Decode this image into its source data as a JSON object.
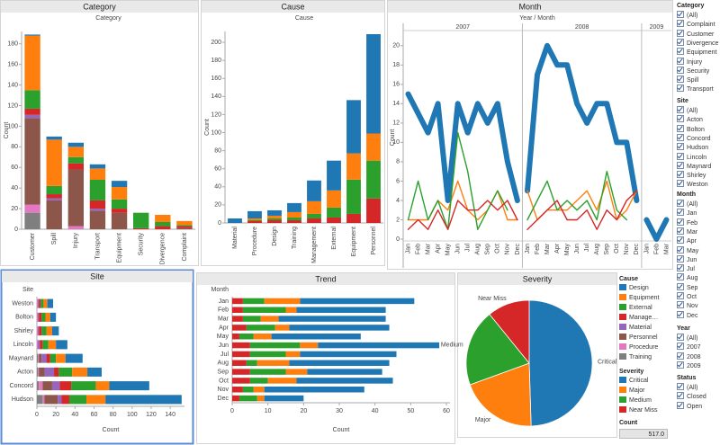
{
  "chart_data": [
    {
      "type": "bar",
      "title": "Category",
      "subtitle": "Category",
      "y_label": "Count",
      "categories": [
        "Customer",
        "Spill",
        "Injury",
        "Transport",
        "Equipment",
        "Security",
        "Divergence",
        "Complaint"
      ],
      "series": [
        {
          "name": "Design",
          "color": "#1f77b4",
          "values": [
            1,
            3,
            4,
            4,
            6,
            0,
            0,
            0
          ]
        },
        {
          "name": "Equipment",
          "color": "#ff7f0e",
          "values": [
            53,
            45,
            10,
            11,
            12,
            0,
            7,
            4
          ]
        },
        {
          "name": "External",
          "color": "#2ca02c",
          "values": [
            18,
            8,
            6,
            20,
            9,
            15,
            4,
            1
          ]
        },
        {
          "name": "Management",
          "color": "#d62728",
          "values": [
            6,
            4,
            6,
            8,
            4,
            1,
            3,
            2
          ]
        },
        {
          "name": "Material",
          "color": "#9467bd",
          "values": [
            3,
            2,
            0,
            2,
            0,
            0,
            0,
            0
          ]
        },
        {
          "name": "Personnel",
          "color": "#8c564b",
          "values": [
            84,
            28,
            55,
            18,
            16,
            0,
            0,
            1
          ]
        },
        {
          "name": "Procedure",
          "color": "#e377c2",
          "values": [
            8,
            0,
            3,
            0,
            0,
            0,
            0,
            0
          ]
        },
        {
          "name": "Training",
          "color": "#7f7f7f",
          "values": [
            16,
            0,
            0,
            0,
            0,
            0,
            0,
            0
          ]
        }
      ],
      "ylim": [
        0,
        192
      ],
      "yticks": [
        0,
        20,
        40,
        60,
        80,
        100,
        120,
        140,
        160,
        180
      ]
    },
    {
      "type": "bar",
      "title": "Cause",
      "subtitle": "Cause",
      "y_label": "Count",
      "categories": [
        "Material",
        "Procedure",
        "Design",
        "Training",
        "Management",
        "External",
        "Equipment",
        "Personnel"
      ],
      "series": [
        {
          "name": "Critical",
          "color": "#1f77b4",
          "values": [
            5,
            8,
            6,
            10,
            23,
            33,
            59,
            110
          ]
        },
        {
          "name": "Major",
          "color": "#ff7f0e",
          "values": [
            0,
            2,
            3,
            6,
            14,
            19,
            29,
            30
          ]
        },
        {
          "name": "Medium",
          "color": "#2ca02c",
          "values": [
            0,
            1,
            2,
            3,
            5,
            11,
            38,
            42
          ]
        },
        {
          "name": "Near Miss",
          "color": "#d62728",
          "values": [
            0,
            2,
            3,
            3,
            5,
            6,
            10,
            27
          ]
        }
      ],
      "ylim": [
        0,
        212
      ],
      "yticks": [
        0,
        20,
        40,
        60,
        80,
        100,
        120,
        140,
        160,
        180,
        200
      ]
    },
    {
      "type": "line",
      "title": "Month",
      "subtitle": "Year  /  Month",
      "y_label": "Count",
      "groups": [
        {
          "name": "2007",
          "categories": [
            "Jan",
            "Feb",
            "Mar",
            "Apr",
            "May",
            "Jun",
            "Jul",
            "Aug",
            "Sep",
            "Oct",
            "Nov",
            "Dec"
          ]
        },
        {
          "name": "2008",
          "categories": [
            "Jan",
            "Feb",
            "Mar",
            "Apr",
            "May",
            "Jun",
            "Jul",
            "Aug",
            "Sep",
            "Oct",
            "Nov",
            "Dec"
          ]
        },
        {
          "name": "2009",
          "categories": [
            "Jan",
            "Feb",
            "Mar"
          ]
        }
      ],
      "series": [
        {
          "color": "#1f77b4",
          "values": [
            [
              15,
              13,
              11,
              14,
              4,
              14,
              11,
              14,
              12,
              14,
              8,
              4
            ],
            [
              5,
              17,
              20,
              18,
              18,
              14,
              12,
              14,
              14,
              10,
              10,
              4
            ],
            [
              2,
              0,
              2
            ]
          ]
        },
        {
          "color": "#ff7f0e",
          "values": [
            [
              2,
              2,
              2,
              4,
              3,
              6,
              3,
              2,
              3,
              5,
              2,
              2
            ],
            [
              5,
              2,
              3,
              3,
              3,
              4,
              5,
              3,
              6,
              2,
              3,
              5
            ],
            [
              null,
              null,
              null
            ]
          ]
        },
        {
          "color": "#2ca02c",
          "values": [
            [
              2,
              6,
              2,
              4,
              1,
              11,
              7,
              1,
              3,
              5,
              3,
              null
            ],
            [
              2,
              4,
              6,
              3,
              4,
              3,
              4,
              2,
              7,
              3,
              2,
              null
            ],
            [
              null,
              null,
              null
            ]
          ]
        },
        {
          "color": "#d62728",
          "values": [
            [
              1,
              2,
              1,
              3,
              1,
              4,
              3,
              3,
              4,
              3,
              4,
              2
            ],
            [
              1,
              2,
              3,
              4,
              2,
              2,
              3,
              1,
              3,
              2,
              4,
              5
            ],
            [
              null,
              null,
              null
            ]
          ]
        }
      ],
      "ylim": [
        0,
        21
      ],
      "yticks": [
        0,
        2,
        4,
        6,
        8,
        10,
        12,
        14,
        16,
        18,
        20
      ]
    },
    {
      "type": "barh",
      "title": "Site",
      "y_label": "Site",
      "x_label": "Count",
      "categories": [
        "Weston",
        "Bolton",
        "Shirley",
        "Lincoln",
        "Maynard",
        "Acton",
        "Concord",
        "Hudson"
      ],
      "series": [
        {
          "color": "#1f77b4",
          "values": [
            6,
            6,
            7,
            12,
            18,
            15,
            42,
            80
          ]
        },
        {
          "color": "#ff7f0e",
          "values": [
            4,
            5,
            6,
            8,
            10,
            16,
            14,
            20
          ]
        },
        {
          "color": "#2ca02c",
          "values": [
            3,
            4,
            5,
            6,
            6,
            14,
            26,
            18
          ]
        },
        {
          "color": "#d62728",
          "values": [
            2,
            3,
            3,
            3,
            4,
            5,
            12,
            8
          ]
        },
        {
          "color": "#9467bd",
          "values": [
            1,
            1,
            1,
            2,
            5,
            10,
            8,
            4
          ]
        },
        {
          "color": "#8c564b",
          "values": [
            0,
            0,
            0,
            0,
            3,
            6,
            10,
            14
          ]
        },
        {
          "color": "#e377c2",
          "values": [
            1,
            1,
            1,
            1,
            1,
            1,
            4,
            2
          ]
        },
        {
          "color": "#7f7f7f",
          "values": [
            0,
            0,
            0,
            0,
            1,
            1,
            2,
            6
          ]
        }
      ],
      "xlim": [
        0,
        155
      ],
      "xticks": [
        0,
        20,
        40,
        60,
        80,
        100,
        120,
        140
      ]
    },
    {
      "type": "barh",
      "title": "Trend",
      "y_label": "Month",
      "x_label": "Count",
      "categories": [
        "Jan",
        "Feb",
        "Mar",
        "Apr",
        "May",
        "Jun",
        "Jul",
        "Aug",
        "Sep",
        "Oct",
        "Nov",
        "Dec"
      ],
      "series": [
        {
          "color": "#1f77b4",
          "values": [
            32,
            25,
            30,
            28,
            25,
            34,
            27,
            28,
            21,
            27,
            28,
            11
          ]
        },
        {
          "color": "#ff7f0e",
          "values": [
            10,
            3,
            5,
            4,
            5,
            5,
            4,
            9,
            6,
            8,
            3,
            2
          ]
        },
        {
          "color": "#2ca02c",
          "values": [
            6,
            12,
            5,
            8,
            4,
            14,
            10,
            3,
            10,
            5,
            3,
            5
          ]
        },
        {
          "color": "#d62728",
          "values": [
            3,
            3,
            3,
            4,
            2,
            5,
            5,
            4,
            5,
            5,
            3,
            2
          ]
        }
      ],
      "xlim": [
        0,
        61
      ],
      "xticks": [
        0,
        10,
        20,
        30,
        40,
        50,
        60
      ]
    },
    {
      "type": "pie",
      "title": "Severity",
      "categories": [
        "Critical",
        "Major",
        "Medium",
        "Near Miss"
      ],
      "values": [
        256,
        103,
        102,
        56
      ],
      "colors": [
        "#1f77b4",
        "#ff7f0e",
        "#2ca02c",
        "#d62728"
      ]
    }
  ],
  "legends": [
    {
      "title": "Cause"
    },
    {
      "title": "Severity"
    }
  ],
  "count_card": {
    "title": "Count",
    "value": "517.0"
  },
  "filters": [
    {
      "title": "Category",
      "items": [
        "(All)",
        "Complaint",
        "Customer",
        "Divergence",
        "Equipment",
        "Injury",
        "Security",
        "Spill",
        "Transport"
      ]
    },
    {
      "title": "Site",
      "items": [
        "(All)",
        "Acton",
        "Bolton",
        "Concord",
        "Hudson",
        "Lincoln",
        "Maynard",
        "Shirley",
        "Weston"
      ]
    },
    {
      "title": "Month",
      "items": [
        "(All)",
        "Jan",
        "Feb",
        "Mar",
        "Apr",
        "May",
        "Jun",
        "Jul",
        "Aug",
        "Sep",
        "Oct",
        "Nov",
        "Dec"
      ]
    },
    {
      "title": "Year",
      "items": [
        "(All)",
        "2007",
        "2008",
        "2009"
      ]
    },
    {
      "title": "Status",
      "items": [
        "(All)",
        "Closed",
        "Open"
      ]
    }
  ]
}
